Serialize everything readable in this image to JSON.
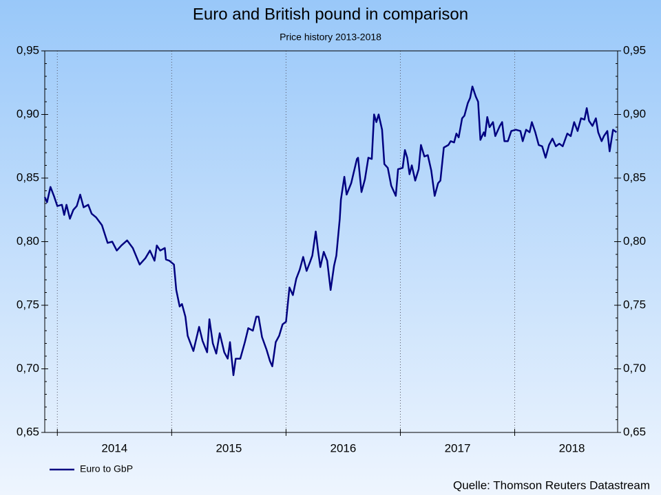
{
  "chart_data": {
    "type": "line",
    "title": "Euro and British pound in comparison",
    "subtitle": "Price history 2013-2018",
    "source": "Quelle: Thomson Reuters Datastream",
    "legend": "bottom-left",
    "grid": true,
    "xlim": [
      2013.89,
      2018.9
    ],
    "xticks": [
      {
        "value": 2014,
        "label": "2014"
      },
      {
        "value": 2015,
        "label": "2015"
      },
      {
        "value": 2016,
        "label": "2016"
      },
      {
        "value": 2017,
        "label": "2017"
      },
      {
        "value": 2018,
        "label": "2018"
      }
    ],
    "ylim": [
      0.65,
      0.95
    ],
    "yticks": [
      {
        "value": 0.65,
        "label": "0,65"
      },
      {
        "value": 0.7,
        "label": "0,70"
      },
      {
        "value": 0.75,
        "label": "0,75"
      },
      {
        "value": 0.8,
        "label": "0,80"
      },
      {
        "value": 0.85,
        "label": "0,85"
      },
      {
        "value": 0.9,
        "label": "0,90"
      },
      {
        "value": 0.95,
        "label": "0,95"
      }
    ],
    "x": [
      2013.89,
      2013.91,
      2013.94,
      2013.97,
      2014.0,
      2014.04,
      2014.06,
      2014.08,
      2014.11,
      2014.14,
      2014.17,
      2014.2,
      2014.23,
      2014.27,
      2014.3,
      2014.34,
      2014.39,
      2014.44,
      2014.48,
      2014.52,
      2014.56,
      2014.61,
      2014.66,
      2014.72,
      2014.77,
      2014.81,
      2014.85,
      2014.87,
      2014.9,
      2014.94,
      2014.95,
      2014.98,
      2015.02,
      2015.04,
      2015.07,
      2015.09,
      2015.12,
      2015.14,
      2015.19,
      2015.24,
      2015.27,
      2015.31,
      2015.33,
      2015.36,
      2015.39,
      2015.42,
      2015.46,
      2015.49,
      2015.51,
      2015.54,
      2015.56,
      2015.6,
      2015.64,
      2015.67,
      2015.71,
      2015.74,
      2015.76,
      2015.79,
      2015.83,
      2015.86,
      2015.88,
      2015.91,
      2015.94,
      2015.97,
      2016.0,
      2016.03,
      2016.06,
      2016.09,
      2016.12,
      2016.15,
      2016.18,
      2016.21,
      2016.23,
      2016.26,
      2016.28,
      2016.3,
      2016.33,
      2016.36,
      2016.39,
      2016.42,
      2016.44,
      2016.47,
      2016.48,
      2016.51,
      2016.53,
      2016.57,
      2016.62,
      2016.63,
      2016.66,
      2016.69,
      2016.72,
      2016.75,
      2016.77,
      2016.79,
      2016.81,
      2016.84,
      2016.86,
      2016.89,
      2016.92,
      2016.96,
      2016.98,
      2017.02,
      2017.04,
      2017.06,
      2017.08,
      2017.1,
      2017.13,
      2017.16,
      2017.18,
      2017.21,
      2017.24,
      2017.27,
      2017.3,
      2017.33,
      2017.35,
      2017.38,
      2017.42,
      2017.44,
      2017.47,
      2017.49,
      2017.51,
      2017.54,
      2017.56,
      2017.59,
      2017.61,
      2017.63,
      2017.66,
      2017.68,
      2017.7,
      2017.73,
      2017.74,
      2017.76,
      2017.78,
      2017.81,
      2017.83,
      2017.87,
      2017.89,
      2017.91,
      2017.94,
      2017.97,
      2018.01,
      2018.05,
      2018.07,
      2018.1,
      2018.13,
      2018.15,
      2018.18,
      2018.21,
      2018.24,
      2018.27,
      2018.3,
      2018.33,
      2018.36,
      2018.39,
      2018.42,
      2018.46,
      2018.49,
      2018.52,
      2018.55,
      2018.58,
      2018.61,
      2018.63,
      2018.65,
      2018.68,
      2018.71,
      2018.73,
      2018.76,
      2018.78,
      2018.81,
      2018.83,
      2018.86,
      2018.89
    ],
    "series": [
      {
        "name": "Euro to GbP",
        "color": "#000080",
        "values": [
          0.835,
          0.831,
          0.843,
          0.836,
          0.828,
          0.829,
          0.821,
          0.829,
          0.818,
          0.825,
          0.828,
          0.837,
          0.827,
          0.829,
          0.822,
          0.819,
          0.813,
          0.799,
          0.8,
          0.793,
          0.797,
          0.801,
          0.795,
          0.782,
          0.787,
          0.793,
          0.785,
          0.797,
          0.793,
          0.795,
          0.786,
          0.785,
          0.782,
          0.762,
          0.749,
          0.751,
          0.741,
          0.726,
          0.714,
          0.733,
          0.722,
          0.713,
          0.739,
          0.72,
          0.712,
          0.728,
          0.713,
          0.708,
          0.721,
          0.695,
          0.708,
          0.708,
          0.721,
          0.732,
          0.73,
          0.741,
          0.741,
          0.725,
          0.715,
          0.706,
          0.702,
          0.721,
          0.726,
          0.735,
          0.737,
          0.764,
          0.758,
          0.771,
          0.778,
          0.788,
          0.777,
          0.784,
          0.789,
          0.808,
          0.793,
          0.78,
          0.792,
          0.785,
          0.762,
          0.781,
          0.789,
          0.818,
          0.833,
          0.851,
          0.837,
          0.846,
          0.865,
          0.866,
          0.839,
          0.849,
          0.866,
          0.865,
          0.9,
          0.894,
          0.9,
          0.888,
          0.861,
          0.858,
          0.844,
          0.836,
          0.857,
          0.858,
          0.872,
          0.866,
          0.853,
          0.86,
          0.848,
          0.857,
          0.876,
          0.867,
          0.868,
          0.856,
          0.836,
          0.846,
          0.848,
          0.874,
          0.876,
          0.879,
          0.878,
          0.885,
          0.882,
          0.897,
          0.899,
          0.909,
          0.913,
          0.922,
          0.914,
          0.91,
          0.88,
          0.886,
          0.883,
          0.898,
          0.89,
          0.894,
          0.883,
          0.891,
          0.894,
          0.879,
          0.879,
          0.887,
          0.888,
          0.887,
          0.879,
          0.888,
          0.886,
          0.894,
          0.886,
          0.876,
          0.875,
          0.866,
          0.876,
          0.881,
          0.875,
          0.877,
          0.875,
          0.885,
          0.883,
          0.894,
          0.887,
          0.897,
          0.896,
          0.905,
          0.895,
          0.891,
          0.897,
          0.886,
          0.879,
          0.883,
          0.887,
          0.871,
          0.888,
          0.886
        ]
      }
    ]
  }
}
